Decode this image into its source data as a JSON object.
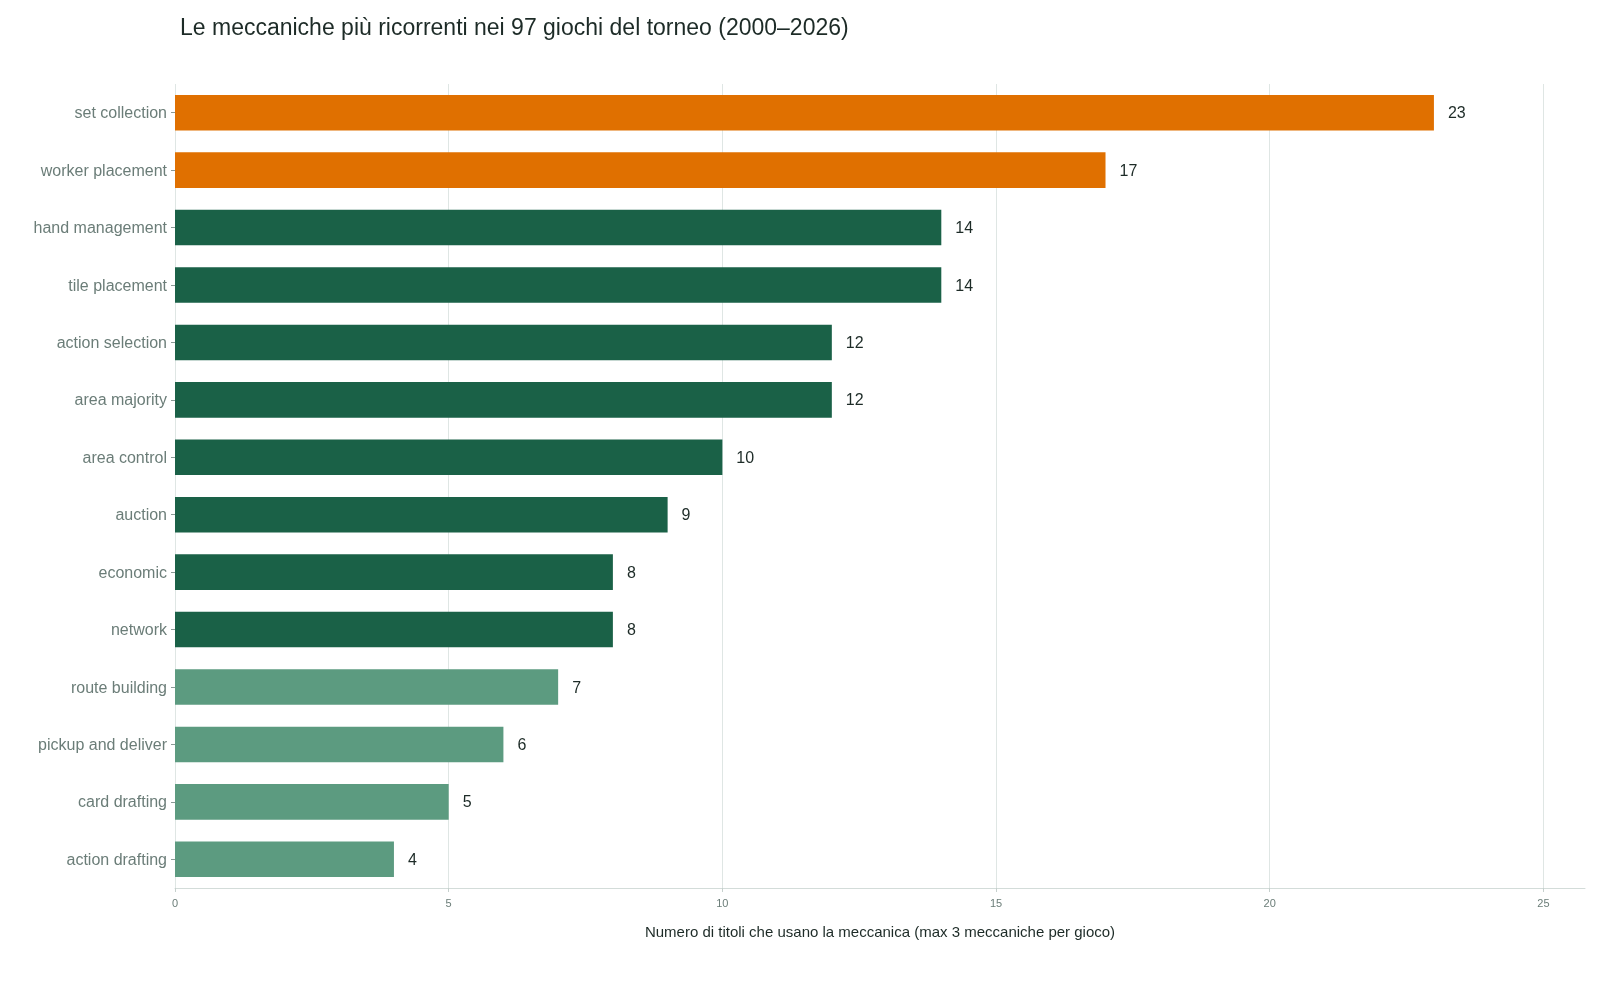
{
  "chart_data": {
    "type": "bar",
    "orientation": "horizontal",
    "title": "Le meccaniche più ricorrenti nei 97 giochi del torneo (2000–2026)",
    "xlabel": "Numero di titoli che usano la meccanica (max 3 meccaniche per gioco)",
    "categories": [
      "set collection",
      "worker placement",
      "hand management",
      "tile placement",
      "action selection",
      "area majority",
      "area control",
      "auction",
      "economic",
      "network",
      "route building",
      "pickup and deliver",
      "card drafting",
      "action drafting"
    ],
    "values": [
      23,
      17,
      14,
      14,
      12,
      12,
      10,
      9,
      8,
      8,
      7,
      6,
      5,
      4
    ],
    "colors": [
      "#e07000",
      "#e07000",
      "#1a6147",
      "#1a6147",
      "#1a6147",
      "#1a6147",
      "#1a6147",
      "#1a6147",
      "#1a6147",
      "#1a6147",
      "#5c9b80",
      "#5c9b80",
      "#5c9b80",
      "#5c9b80"
    ],
    "xlim": [
      0,
      25.76
    ],
    "xticks": [
      0,
      5,
      10,
      15,
      20,
      25
    ],
    "grid": "x",
    "data_labels": true
  }
}
